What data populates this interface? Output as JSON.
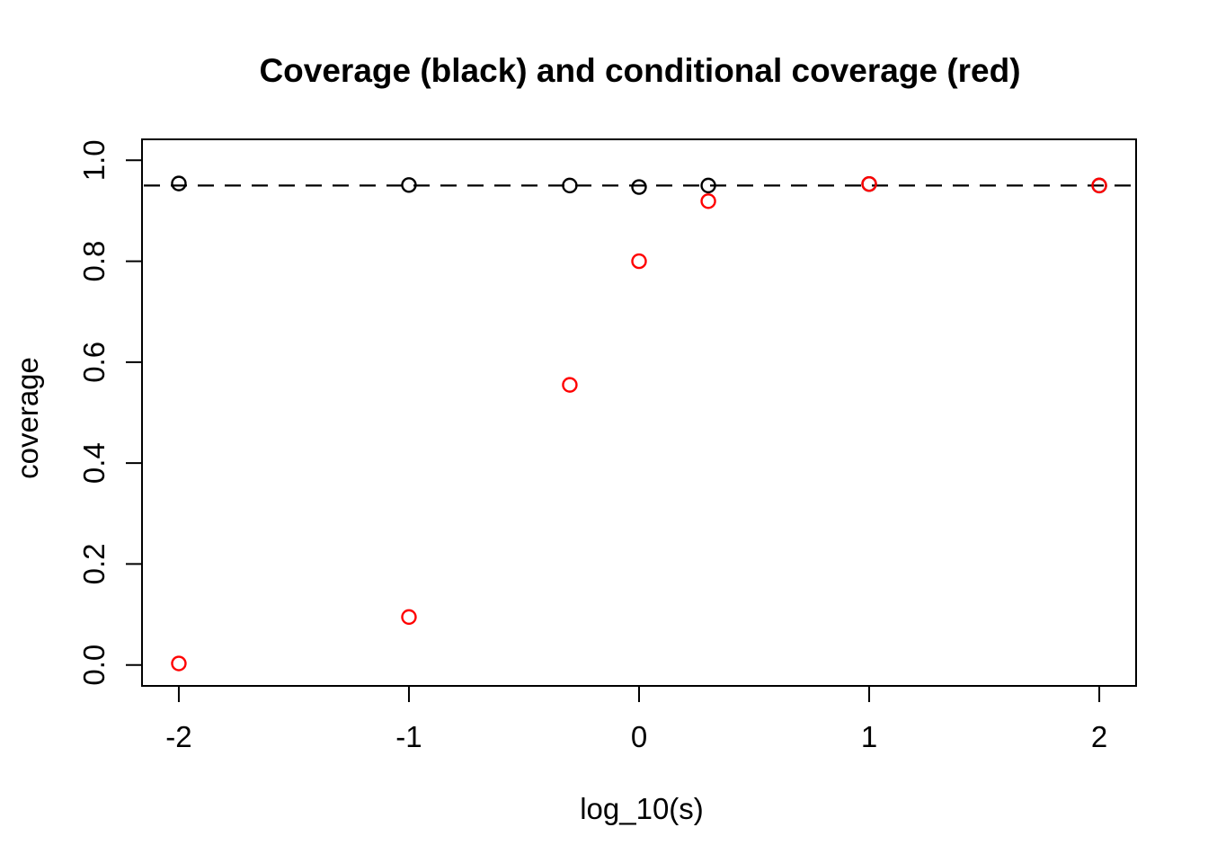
{
  "page": {
    "background_color": "#FFFFFF"
  },
  "chart_data": {
    "type": "scatter",
    "title": "Coverage (black) and conditional coverage (red)",
    "xlabel": "log_10(s)",
    "ylabel": "coverage",
    "x": [
      -2,
      -1,
      -0.301,
      0,
      0.301,
      1,
      2
    ],
    "series": [
      {
        "name": "coverage",
        "color": "#000000",
        "marker": "open-circle",
        "values": [
          0.954,
          0.951,
          0.95,
          0.947,
          0.95,
          0.953,
          0.95
        ]
      },
      {
        "name": "conditional-coverage",
        "color": "#FF0000",
        "marker": "open-circle",
        "values": [
          0.003,
          0.095,
          0.555,
          0.8,
          0.919,
          0.953,
          0.95
        ]
      }
    ],
    "reference_line": {
      "y": 0.95,
      "style": "dashed",
      "color": "#000000"
    },
    "x_ticks": {
      "values": [
        -2,
        -1,
        0,
        1,
        2
      ],
      "labels": [
        "-2",
        "-1",
        "0",
        "1",
        "2"
      ]
    },
    "y_ticks": {
      "values": [
        0,
        0.2,
        0.4,
        0.6,
        0.8,
        1.0
      ],
      "labels": [
        "0.0",
        "0.2",
        "0.4",
        "0.6",
        "0.8",
        "1.0"
      ]
    },
    "xlim": [
      -2.16,
      2.16
    ],
    "ylim": [
      -0.0415,
      1.0415
    ],
    "grid": false,
    "legend_position": "none"
  }
}
